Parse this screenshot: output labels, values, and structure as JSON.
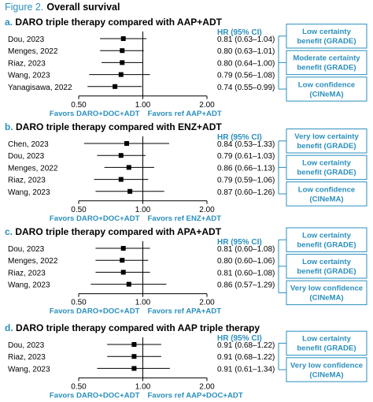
{
  "figure": {
    "label": "Figure 2.",
    "title": "Overall survival",
    "label_color": "#2a8fbd",
    "accent_color": "#2a8fbd"
  },
  "chart_data": [
    {
      "type": "forest",
      "panel": "a",
      "title": "DARO triple therapy compared with AAP+ADT",
      "hr_header": "HR (95% CI)",
      "scale": "log",
      "xlim": [
        0.5,
        2.0
      ],
      "ticks": [
        "0.50",
        "1.00",
        "2.00"
      ],
      "favors_left": "Favors DARO+DOC+ADT",
      "favors_right": "Favors ref AAP+ADT",
      "studies": [
        {
          "study": "Dou, 2023",
          "hr": 0.81,
          "lo": 0.63,
          "hi": 1.04,
          "text": "0.81 (0.63–1.04)"
        },
        {
          "study": "Menges, 2022",
          "hr": 0.8,
          "lo": 0.63,
          "hi": 1.01,
          "text": "0.80 (0.63–1.01)"
        },
        {
          "study": "Riaz, 2023",
          "hr": 0.8,
          "lo": 0.64,
          "hi": 1.0,
          "text": "0.80 (0.64–1.00)"
        },
        {
          "study": "Wang, 2023",
          "hr": 0.79,
          "lo": 0.56,
          "hi": 1.08,
          "text": "0.79 (0.56–1.08)"
        },
        {
          "study": "Yanagisawa, 2022",
          "hr": 0.74,
          "lo": 0.55,
          "hi": 0.99,
          "text": "0.74 (0.55–0.99)"
        }
      ],
      "certainty": [
        {
          "line1": "Low certainty",
          "line2": "benefit (GRADE)"
        },
        {
          "line1": "Moderate certainty",
          "line2": "benefit (GRADE)"
        },
        {
          "line1": "Low confidence",
          "line2": "(CINeMA)"
        }
      ]
    },
    {
      "type": "forest",
      "panel": "b",
      "title": "DARO triple therapy compared with ENZ+ADT",
      "hr_header": "HR (95% CI)",
      "scale": "log",
      "xlim": [
        0.5,
        2.0
      ],
      "ticks": [
        "0.50",
        "1.00",
        "2.00"
      ],
      "favors_left": "Favors DARO+DOC+ADT",
      "favors_right": "Favors ref ENZ+ADT",
      "studies": [
        {
          "study": "Chen, 2023",
          "hr": 0.84,
          "lo": 0.53,
          "hi": 1.33,
          "text": "0.84 (0.53–1.33)"
        },
        {
          "study": "Dou, 2023",
          "hr": 0.79,
          "lo": 0.61,
          "hi": 1.03,
          "text": "0.79 (0.61–1.03)"
        },
        {
          "study": "Menges, 2022",
          "hr": 0.86,
          "lo": 0.66,
          "hi": 1.13,
          "text": "0.86 (0.66–1.13)"
        },
        {
          "study": "Riaz, 2023",
          "hr": 0.79,
          "lo": 0.59,
          "hi": 1.06,
          "text": "0.79 (0.59–1.06)"
        },
        {
          "study": "Wang, 2023",
          "hr": 0.87,
          "lo": 0.6,
          "hi": 1.26,
          "text": "0.87 (0.60–1.26)"
        }
      ],
      "certainty": [
        {
          "line1": "Very low certainty",
          "line2": "benefit (GRADE)"
        },
        {
          "line1": "Low certainty",
          "line2": "benefit (GRADE)"
        },
        {
          "line1": "Low confidence",
          "line2": "(CINeMA)"
        }
      ]
    },
    {
      "type": "forest",
      "panel": "c",
      "title": "DARO triple therapy compared with APA+ADT",
      "hr_header": "HR (95% CI)",
      "scale": "log",
      "xlim": [
        0.5,
        2.0
      ],
      "ticks": [
        "0.50",
        "1.00",
        "2.00"
      ],
      "favors_left": "Favors DARO+DOC+ADT",
      "favors_right": "Favors ref APA+ADT",
      "studies": [
        {
          "study": "Dou, 2023",
          "hr": 0.81,
          "lo": 0.6,
          "hi": 1.08,
          "text": "0.81 (0.60–1.08)"
        },
        {
          "study": "Menges, 2022",
          "hr": 0.8,
          "lo": 0.6,
          "hi": 1.06,
          "text": "0.80 (0.60–1.06)"
        },
        {
          "study": "Riaz, 2023",
          "hr": 0.81,
          "lo": 0.6,
          "hi": 1.08,
          "text": "0.81 (0.60–1.08)"
        },
        {
          "study": "Wang, 2023",
          "hr": 0.86,
          "lo": 0.57,
          "hi": 1.29,
          "text": "0.86 (0.57–1.29)"
        }
      ],
      "certainty": [
        {
          "line1": "Low certainty",
          "line2": "benefit (GRADE)"
        },
        {
          "line1": "Low certainty",
          "line2": "benefit (GRADE)"
        },
        {
          "line1": "Very low confidence",
          "line2": "(CINeMA)"
        }
      ]
    },
    {
      "type": "forest",
      "panel": "d",
      "title": "DARO triple therapy compared with AAP triple therapy",
      "hr_header": "HR (95% CI)",
      "scale": "log",
      "xlim": [
        0.5,
        2.0
      ],
      "ticks": [
        "0.50",
        "1.00",
        "2.00"
      ],
      "favors_left": "Favors DARO+DOC+ADT",
      "favors_right": "Favors ref AAP+DOC+ADT",
      "studies": [
        {
          "study": "Dou, 2023",
          "hr": 0.91,
          "lo": 0.68,
          "hi": 1.22,
          "text": "0.91 (0.68–1.22)"
        },
        {
          "study": "Riaz, 2023",
          "hr": 0.91,
          "lo": 0.68,
          "hi": 1.22,
          "text": "0.91 (0.68–1.22)"
        },
        {
          "study": "Wang, 2023",
          "hr": 0.91,
          "lo": 0.61,
          "hi": 1.34,
          "text": "0.91 (0.61–1.34)"
        }
      ],
      "certainty": [
        {
          "line1": "Low certainty",
          "line2": "benefit (GRADE)"
        },
        {
          "line1": "Very low confidence",
          "line2": "(CINeMA)"
        }
      ]
    }
  ]
}
